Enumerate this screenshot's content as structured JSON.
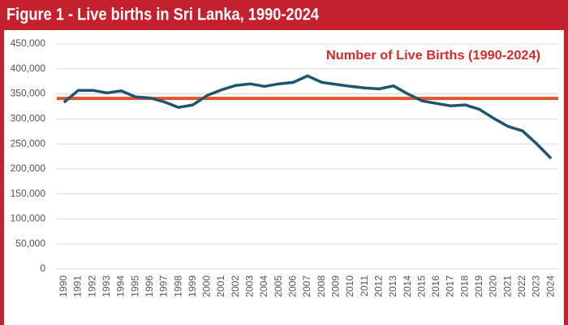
{
  "chart_data": {
    "type": "line",
    "title": "Figure 1 - Live births in Sri Lanka, 1990-2024",
    "annotation": "Number of Live Births (1990-2024)",
    "categories": [
      "1990",
      "1991",
      "1992",
      "1993",
      "1994",
      "1995",
      "1996",
      "1997",
      "1998",
      "1999",
      "2000",
      "2001",
      "2002",
      "2003",
      "2004",
      "2005",
      "2006",
      "2007",
      "2008",
      "2009",
      "2010",
      "2011",
      "2012",
      "2013",
      "2014",
      "2015",
      "2016",
      "2017",
      "2018",
      "2019",
      "2020",
      "2021",
      "2022",
      "2023",
      "2024"
    ],
    "values": [
      333000,
      357000,
      357000,
      352000,
      356000,
      344000,
      342000,
      334000,
      323000,
      328000,
      347000,
      358000,
      367000,
      370000,
      365000,
      370000,
      373000,
      386000,
      373000,
      369000,
      365000,
      362000,
      360000,
      366000,
      350000,
      336000,
      331000,
      326000,
      328000,
      319000,
      301000,
      285000,
      276000,
      250000,
      221000
    ],
    "color": "#1d5670",
    "hline": {
      "value": 341000,
      "color": "#e5532a"
    },
    "ylim": [
      0,
      450000
    ],
    "yticks": [
      0,
      {
        "value": 50000,
        "label": "50,000"
      },
      {
        "value": 100000,
        "label": "100,000"
      },
      {
        "value": 150000,
        "label": "150,000"
      },
      {
        "value": 200000,
        "label": "200,000"
      },
      {
        "value": 250000,
        "label": "250,000"
      },
      {
        "value": 300000,
        "label": "300,000"
      },
      {
        "value": 350000,
        "label": "350,000"
      },
      {
        "value": 400000,
        "label": "400,000"
      },
      {
        "value": 450000,
        "label": "450,000"
      }
    ],
    "grid": true
  }
}
